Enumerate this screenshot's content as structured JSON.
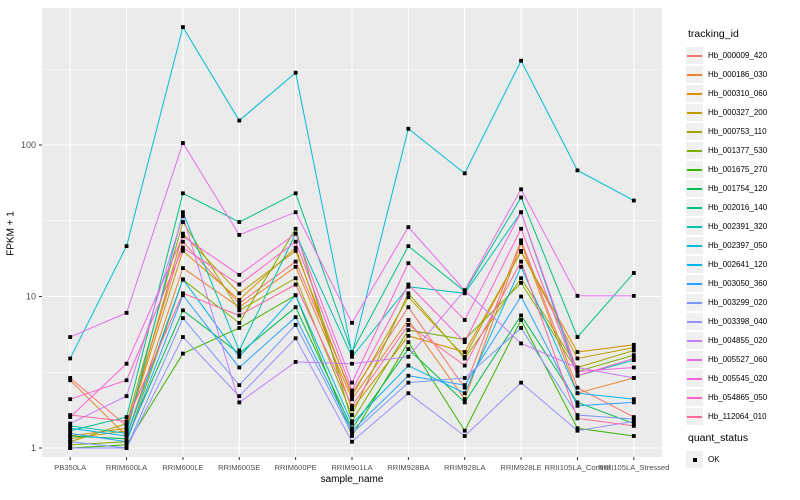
{
  "figure": {
    "x_axis_title": "sample_name",
    "y_axis_title": "FPKM + 1",
    "y_tick_labels": [
      "1",
      "10",
      "100"
    ],
    "panel_bg": "#EBEBEB",
    "grid_color": "#FFFFFF",
    "point_color": "#000000",
    "tick_text_color": "#4D4D4D"
  },
  "legend": {
    "title": "tracking_id"
  },
  "legend2": {
    "title": "quant_status",
    "items": [
      {
        "label": "OK"
      }
    ]
  },
  "chart_data": {
    "type": "line",
    "title": "",
    "xlabel": "sample_name",
    "ylabel": "FPKM + 1",
    "y_scale": "log10",
    "ylim": [
      0.87,
      800
    ],
    "y_ticks": [
      1,
      10,
      100
    ],
    "y_minor_ticks": [
      3.162,
      31.62,
      316.2
    ],
    "grid": true,
    "legend_position": "right",
    "point_marker": "small black square (quant_status = OK)",
    "categories": [
      "PB350LA",
      "RRIM600LA",
      "RRIM600LE",
      "RRIM600SE",
      "RRIM600PE",
      "RRIM901LA",
      "RRIM928BA",
      "RRIM928LA",
      "RRIM928LE",
      "RRII105LA_Control",
      "RRII105LA_Stressed"
    ],
    "series": [
      {
        "name": "Hb_000009_420",
        "color": "#F8766D",
        "values": [
          2.9,
          1.4,
          23,
          9.0,
          17,
          2.3,
          8.5,
          2.5,
          23.5,
          2.5,
          1.6
        ]
      },
      {
        "name": "Hb_000186_030",
        "color": "#EA8331",
        "values": [
          2.8,
          1.2,
          15.4,
          8.5,
          15.7,
          2.1,
          7.0,
          2.1,
          22.5,
          2.3,
          2.9
        ]
      },
      {
        "name": "Hb_000310_060",
        "color": "#D89000",
        "values": [
          1.2,
          1.35,
          20,
          9.5,
          21,
          1.8,
          5.5,
          4.3,
          19.7,
          4.3,
          4.8
        ]
      },
      {
        "name": "Hb_000327_200",
        "color": "#C09B00",
        "values": [
          1.15,
          1.3,
          26,
          10.5,
          20,
          2.2,
          9.9,
          4.0,
          20,
          3.9,
          4.6
        ]
      },
      {
        "name": "Hb_000753_110",
        "color": "#A3A500",
        "values": [
          1.1,
          1.45,
          31,
          8.1,
          13.2,
          1.65,
          10.5,
          3.9,
          13.2,
          3.4,
          4.4
        ]
      },
      {
        "name": "Hb_001377_530",
        "color": "#7CAE00",
        "values": [
          1.05,
          1.1,
          12.9,
          6.7,
          28,
          1.5,
          6.0,
          5.2,
          12.3,
          3.2,
          4.1
        ]
      },
      {
        "name": "Hb_001675_270",
        "color": "#39B600",
        "values": [
          1.0,
          1.05,
          4.2,
          6.2,
          10.2,
          1.2,
          5.0,
          1.3,
          7.0,
          1.35,
          1.2
        ]
      },
      {
        "name": "Hb_001754_120",
        "color": "#00BB4E",
        "values": [
          1.2,
          1.15,
          8.1,
          4.2,
          8.5,
          1.35,
          4.5,
          2.0,
          7.5,
          2.0,
          1.45
        ]
      },
      {
        "name": "Hb_002016_140",
        "color": "#00C087",
        "values": [
          1.3,
          1.6,
          48,
          31,
          48,
          4.3,
          21.5,
          10.8,
          45,
          5.4,
          14.3
        ]
      },
      {
        "name": "Hb_002391_320",
        "color": "#00C0B2",
        "values": [
          1.4,
          1.25,
          36,
          4.4,
          26,
          4.0,
          11.6,
          10.5,
          36,
          3.0,
          3.8
        ]
      },
      {
        "name": "Hb_002397_050",
        "color": "#00BCD8",
        "values": [
          3.9,
          21.5,
          600,
          145,
          300,
          4.2,
          128,
          65,
          360,
          68,
          43
        ]
      },
      {
        "name": "Hb_002641_120",
        "color": "#00B3F2",
        "values": [
          1.35,
          1.2,
          13,
          4.0,
          10.2,
          1.45,
          3.5,
          2.3,
          15.7,
          2.3,
          2.1
        ]
      },
      {
        "name": "Hb_003050_360",
        "color": "#29A3FF",
        "values": [
          1.25,
          1.1,
          10.2,
          3.4,
          7.3,
          1.3,
          3.0,
          2.6,
          10,
          1.9,
          2.0
        ]
      },
      {
        "name": "Hb_003299_020",
        "color": "#7997FF",
        "values": [
          1.1,
          1.0,
          7.2,
          2.6,
          6.5,
          1.25,
          2.7,
          2.9,
          6.2,
          1.65,
          1.55
        ]
      },
      {
        "name": "Hb_003398_040",
        "color": "#9590FF",
        "values": [
          1.0,
          1.0,
          5.4,
          2.2,
          5.3,
          1.1,
          2.3,
          1.2,
          2.7,
          1.3,
          1.5
        ]
      },
      {
        "name": "Hb_004855_020",
        "color": "#C77CFF",
        "values": [
          1.45,
          2.2,
          34,
          2.0,
          3.7,
          3.6,
          4.0,
          11.0,
          4.9,
          3.4,
          2.9
        ]
      },
      {
        "name": "Hb_005527_060",
        "color": "#E76BF3",
        "values": [
          5.4,
          7.8,
          103,
          25.5,
          36,
          6.7,
          28.7,
          11.0,
          51,
          10.1,
          10.1
        ]
      },
      {
        "name": "Hb_005545_020",
        "color": "#FA62DB",
        "values": [
          1.6,
          3.6,
          25,
          13.9,
          26,
          2.7,
          16.6,
          7.0,
          36,
          3.2,
          3.4
        ]
      },
      {
        "name": "Hb_054865_050",
        "color": "#FF61C7",
        "values": [
          2.1,
          2.8,
          21,
          12.0,
          23,
          2.4,
          12.0,
          5.0,
          28,
          3.0,
          3.9
        ]
      },
      {
        "name": "Hb_112064_010",
        "color": "#FF689E",
        "values": [
          1.65,
          1.5,
          10.5,
          7.5,
          12.0,
          1.9,
          6.5,
          3.5,
          17,
          1.57,
          1.4
        ]
      }
    ]
  }
}
